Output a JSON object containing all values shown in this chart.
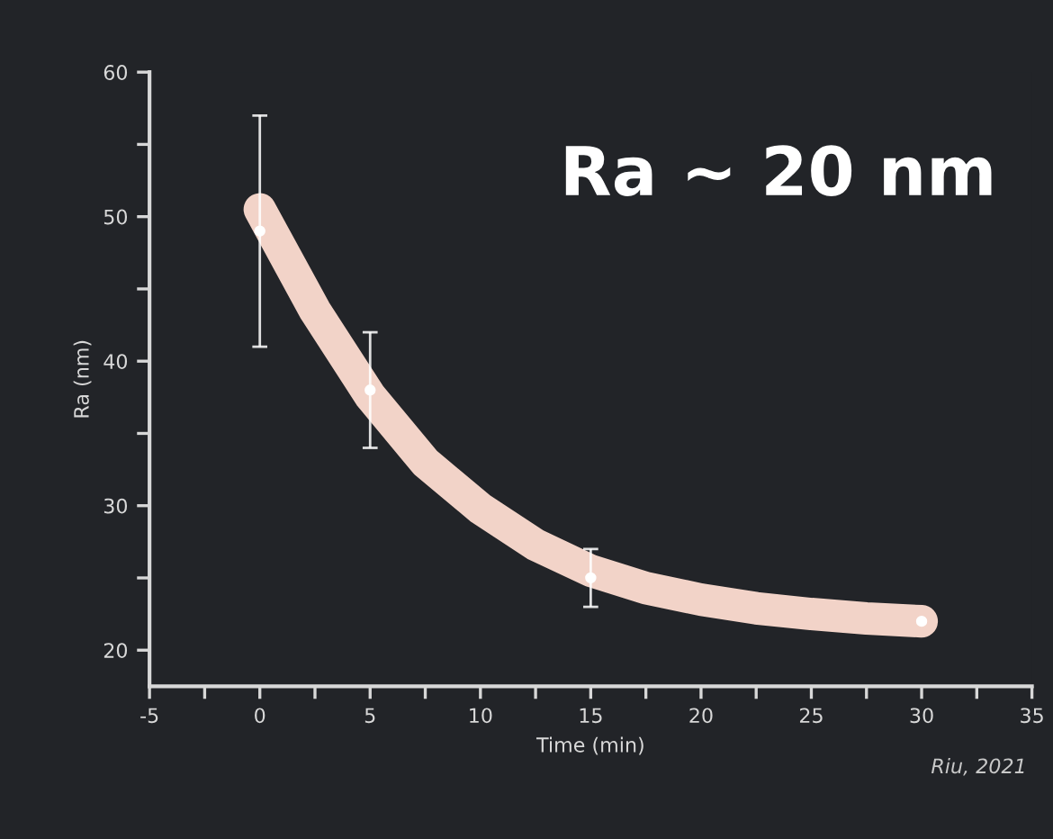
{
  "chart_data": {
    "type": "scatter",
    "xlabel": "Time (min)",
    "ylabel": "Ra (nm)",
    "annotations": [
      "Ra ~ 20 nm",
      "Riu, 2021"
    ],
    "xlim": [
      -5,
      35
    ],
    "ylim": [
      17.5,
      60
    ],
    "xticks": [
      -5,
      {
        "value": -2.5,
        "label": null
      },
      0,
      {
        "value": 2.5,
        "label": null
      },
      5,
      {
        "value": 7.5,
        "label": null
      },
      10,
      {
        "value": 12.5,
        "label": null
      },
      15,
      {
        "value": 17.5,
        "label": null
      },
      20,
      {
        "value": 22.5,
        "label": null
      },
      25,
      {
        "value": 27.5,
        "label": null
      },
      30,
      {
        "value": 32.5,
        "label": null
      },
      35
    ],
    "yticks": [
      20,
      {
        "value": 25,
        "label": null
      },
      30,
      {
        "value": 35,
        "label": null
      },
      40,
      {
        "value": 45,
        "label": null
      },
      50,
      {
        "value": 55,
        "label": null
      },
      60
    ],
    "grid": false,
    "series": [
      {
        "type": "line",
        "color": "#f2d3c8",
        "line_style": "solid",
        "marker": "none",
        "x": [
          0,
          2.5,
          5,
          7.5,
          10,
          12.5,
          15,
          17.5,
          20,
          22.5,
          25,
          27.5,
          30
        ],
        "values": [
          50.5,
          43.5,
          37.6,
          33,
          29.8,
          27.3,
          25.5,
          24.3,
          23.5,
          22.9,
          22.5,
          22.2,
          22
        ]
      },
      {
        "color": "#ffffff",
        "marker": "circle",
        "x": [
          0,
          5,
          15,
          30
        ],
        "values": [
          49,
          38,
          25,
          22
        ],
        "errors": [
          [
            41,
            57
          ],
          [
            34,
            42
          ],
          [
            23,
            27
          ],
          null
        ]
      }
    ]
  }
}
